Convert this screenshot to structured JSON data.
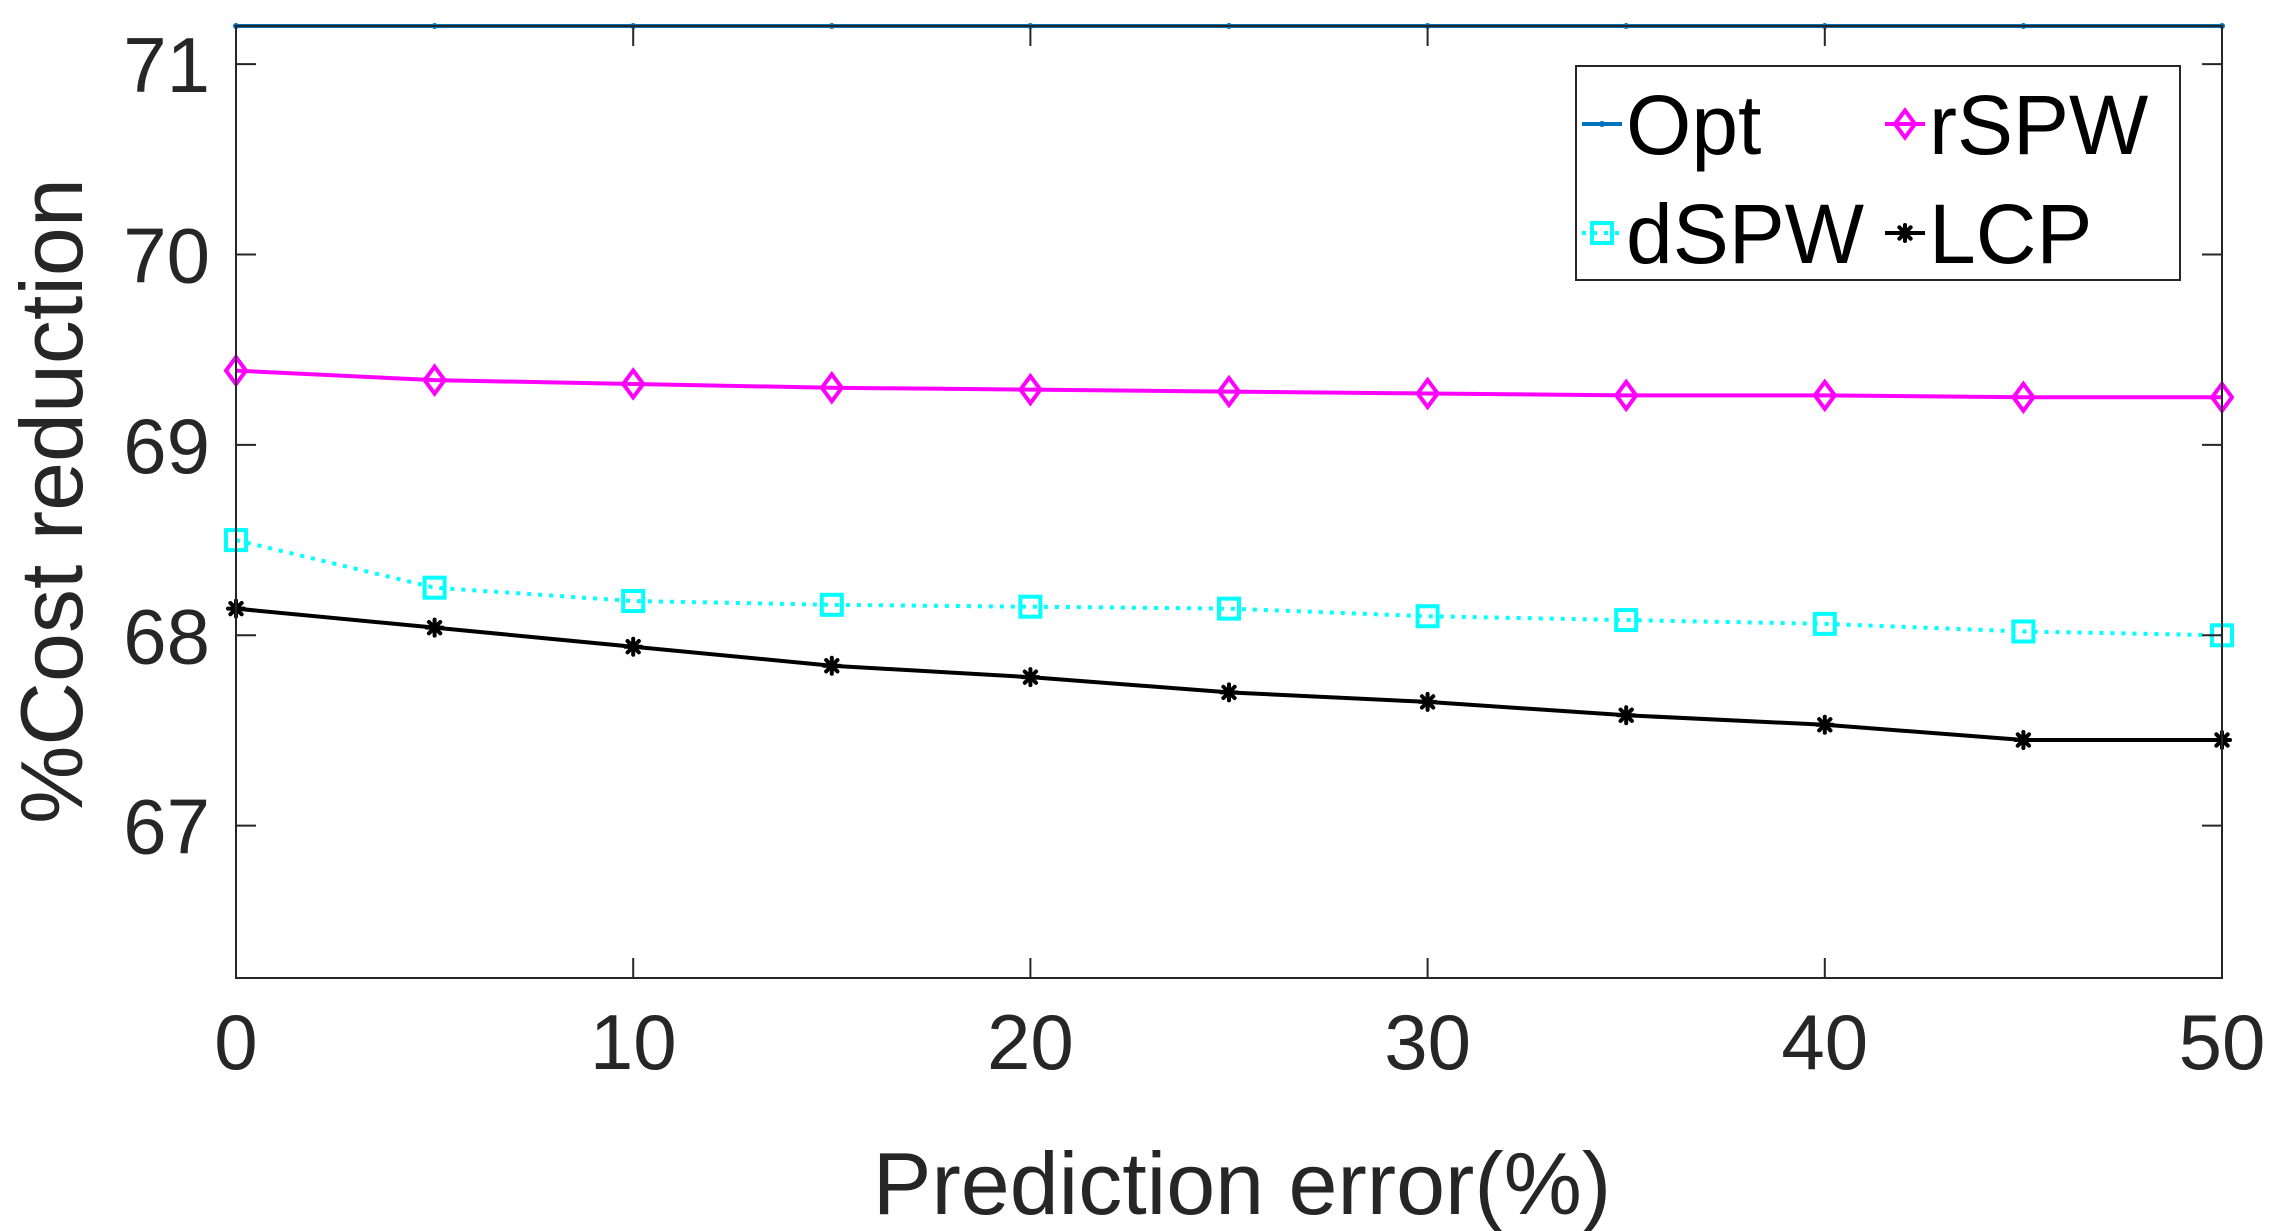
{
  "chart_data": {
    "type": "line",
    "xlabel": "Prediction error(%)",
    "ylabel": "%Cost reduction",
    "xlim": [
      0,
      50
    ],
    "ylim": [
      66.2,
      71.2
    ],
    "xticks": [
      "0",
      "10",
      "20",
      "30",
      "40",
      "50"
    ],
    "yticks": [
      "67",
      "68",
      "69",
      "70",
      "71"
    ],
    "grid": false,
    "legend_position": "top-right",
    "x": [
      0,
      5,
      10,
      15,
      20,
      25,
      30,
      35,
      40,
      45,
      50
    ],
    "series": [
      {
        "name": "Opt",
        "color": "#0072BD",
        "marker": "dot",
        "line_style": "solid",
        "values": [
          71.2,
          71.2,
          71.2,
          71.2,
          71.2,
          71.2,
          71.2,
          71.2,
          71.2,
          71.2,
          71.2
        ]
      },
      {
        "name": "rSPW",
        "color": "#FF00FF",
        "marker": "diamond",
        "line_style": "solid",
        "values": [
          69.39,
          69.34,
          69.32,
          69.3,
          69.29,
          69.28,
          69.27,
          69.26,
          69.26,
          69.25,
          69.25
        ]
      },
      {
        "name": "dSPW",
        "color": "#00FFFF",
        "marker": "square",
        "line_style": "dotted",
        "values": [
          68.5,
          68.25,
          68.18,
          68.16,
          68.15,
          68.14,
          68.1,
          68.08,
          68.06,
          68.02,
          68.0
        ]
      },
      {
        "name": "LCP",
        "color": "#000000",
        "marker": "asterisk",
        "line_style": "solid",
        "values": [
          68.14,
          68.04,
          67.94,
          67.84,
          67.78,
          67.7,
          67.65,
          67.58,
          67.53,
          67.45,
          67.45
        ]
      }
    ]
  }
}
